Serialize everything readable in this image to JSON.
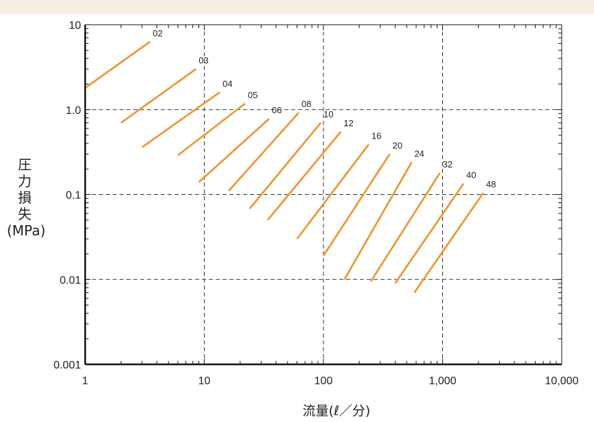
{
  "colors": {
    "band": "#f6efe0",
    "series": "#f0922b",
    "axis": "#111111",
    "grid": "#333333"
  },
  "chart_data": {
    "type": "line",
    "title": "",
    "xlabel": "流量(ℓ／分)",
    "ylabel": "圧力損失(MPa)",
    "ylabel_lines": [
      "圧",
      "力",
      "損",
      "失",
      "(MPa)"
    ],
    "xscale": "log",
    "yscale": "log",
    "xlim": [
      1,
      10000
    ],
    "ylim": [
      0.001,
      10
    ],
    "grid": "dashed",
    "xticks": [
      {
        "value": 1,
        "label": "1"
      },
      {
        "value": 10,
        "label": "10"
      },
      {
        "value": 100,
        "label": "100"
      },
      {
        "value": 1000,
        "label": "1,000"
      },
      {
        "value": 10000,
        "label": "10,000"
      }
    ],
    "yticks": [
      {
        "value": 0.001,
        "label": "0.001"
      },
      {
        "value": 0.01,
        "label": "0.01"
      },
      {
        "value": 0.1,
        "label": "0.1"
      },
      {
        "value": 1,
        "label": "1.0"
      },
      {
        "value": 10,
        "label": "10"
      }
    ],
    "series": [
      {
        "name": "02",
        "x": [
          1,
          3.5
        ],
        "y": [
          1.8,
          6.3
        ]
      },
      {
        "name": "03",
        "x": [
          2,
          8.5
        ],
        "y": [
          0.7,
          3.0
        ]
      },
      {
        "name": "04",
        "x": [
          3,
          13.5
        ],
        "y": [
          0.36,
          1.6
        ]
      },
      {
        "name": "05",
        "x": [
          6,
          22
        ],
        "y": [
          0.29,
          1.18
        ]
      },
      {
        "name": "06",
        "x": [
          9,
          35
        ],
        "y": [
          0.14,
          0.78
        ]
      },
      {
        "name": "08",
        "x": [
          16,
          62
        ],
        "y": [
          0.11,
          0.92
        ]
      },
      {
        "name": "10",
        "x": [
          24,
          95
        ],
        "y": [
          0.068,
          0.7
        ]
      },
      {
        "name": "12",
        "x": [
          34,
          140
        ],
        "y": [
          0.05,
          0.55
        ]
      },
      {
        "name": "16",
        "x": [
          60,
          240
        ],
        "y": [
          0.03,
          0.39
        ]
      },
      {
        "name": "20",
        "x": [
          100,
          360
        ],
        "y": [
          0.019,
          0.3
        ]
      },
      {
        "name": "24",
        "x": [
          150,
          550
        ],
        "y": [
          0.01,
          0.24
        ]
      },
      {
        "name": "32",
        "x": [
          250,
          950
        ],
        "y": [
          0.0095,
          0.18
        ]
      },
      {
        "name": "40",
        "x": [
          400,
          1500
        ],
        "y": [
          0.009,
          0.135
        ]
      },
      {
        "name": "48",
        "x": [
          580,
          2200
        ],
        "y": [
          0.007,
          0.105
        ]
      }
    ]
  }
}
